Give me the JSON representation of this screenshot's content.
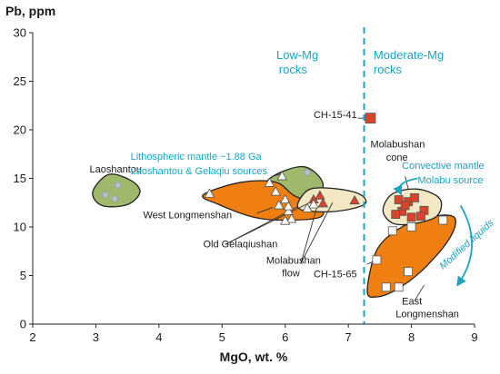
{
  "chart_data": {
    "type": "scatter",
    "xlabel": "MgO, wt. %",
    "ylabel": "Pb, ppm",
    "xlim": [
      2,
      9
    ],
    "ylim": [
      0,
      30
    ],
    "xticks": [
      "2",
      "3",
      "4",
      "5",
      "6",
      "7",
      "8",
      "9"
    ],
    "yticks": [
      "0",
      "5",
      "10",
      "15",
      "20",
      "25",
      "30"
    ],
    "grid": false,
    "divider": {
      "x": 7.25,
      "style": "dashed",
      "color": "#1ba3c6",
      "left_label": [
        "Low-Mg",
        "rocks"
      ],
      "right_label": [
        "Moderate-Mg",
        "rocks"
      ]
    },
    "fields": [
      {
        "label": "Laoshantou",
        "color": "#9fb86b",
        "polygon": [
          [
            2.95,
            13.6
          ],
          [
            3.2,
            15.4
          ],
          [
            3.55,
            14.8
          ],
          [
            3.7,
            13.6
          ],
          [
            3.5,
            12.3
          ],
          [
            3.1,
            12.2
          ]
        ]
      },
      {
        "label": "Lithospheric mantle ~1.88 Ga",
        "color": "#9fb86b",
        "polygon": [
          [
            5.65,
            13.6
          ],
          [
            5.8,
            15.2
          ],
          [
            6.3,
            16.2
          ],
          [
            6.6,
            14.4
          ],
          [
            6.4,
            12.2
          ],
          [
            5.95,
            12.3
          ]
        ]
      },
      {
        "label": "West Longmenshan",
        "color": "#f07f12",
        "polygon": [
          [
            4.7,
            13.3
          ],
          [
            5.3,
            14.6
          ],
          [
            5.85,
            14.6
          ],
          [
            6.15,
            13.2
          ],
          [
            6.55,
            12.2
          ],
          [
            6.55,
            11.0
          ],
          [
            6.0,
            10.7
          ],
          [
            5.5,
            11.0
          ],
          [
            4.95,
            12.3
          ]
        ]
      },
      {
        "label": "Old Gelaqiushan",
        "color": "#f2e8c3",
        "polygon": [
          [
            6.2,
            12.4
          ],
          [
            6.4,
            13.9
          ],
          [
            6.85,
            13.9
          ],
          [
            7.2,
            13.3
          ],
          [
            7.25,
            12.3
          ],
          [
            6.8,
            11.6
          ],
          [
            6.3,
            11.7
          ]
        ]
      },
      {
        "label": "East Longmenshan",
        "color": "#f07f12",
        "polygon": [
          [
            7.3,
            3.4
          ],
          [
            7.45,
            7.6
          ],
          [
            7.8,
            9.8
          ],
          [
            8.2,
            10.9
          ],
          [
            8.6,
            11.2
          ],
          [
            8.7,
            10.4
          ],
          [
            8.55,
            8.3
          ],
          [
            8.15,
            5.4
          ],
          [
            7.75,
            3.5
          ],
          [
            7.45,
            2.8
          ]
        ]
      },
      {
        "label": "Molabushan cone",
        "color": "#f2e8c3",
        "polygon": [
          [
            7.55,
            11.7
          ],
          [
            7.7,
            13.4
          ],
          [
            8.1,
            13.9
          ],
          [
            8.45,
            12.9
          ],
          [
            8.4,
            11.1
          ],
          [
            8.0,
            10.3
          ],
          [
            7.7,
            10.4
          ]
        ]
      }
    ],
    "series": [
      {
        "name": "West Longmenshan",
        "marker": "triangle",
        "color": "#ffffff",
        "x": [
          4.8,
          5.75,
          5.85,
          5.95,
          6.0,
          6.05,
          6.1,
          6.0,
          5.9,
          6.05
        ],
        "y": [
          13.4,
          14.5,
          13.6,
          15.2,
          12.8,
          11.6,
          10.8,
          10.6,
          12.2,
          12.1
        ]
      },
      {
        "name": "Old Gelaqiushan",
        "marker": "triangle",
        "color": "#d9442b",
        "x": [
          6.45,
          6.55,
          6.6,
          7.1
        ],
        "y": [
          12.8,
          13.2,
          12.4,
          12.7
        ]
      },
      {
        "name": "Molabushan flow",
        "marker": "triangle",
        "color": "#ffffff",
        "x": [
          6.35,
          6.45
        ],
        "y": [
          11.9,
          12.3
        ]
      },
      {
        "name": "Laoshantou",
        "marker": "diamond",
        "color": "#b7bed6",
        "x": [
          3.15,
          3.35,
          3.3
        ],
        "y": [
          13.3,
          14.3,
          12.9
        ]
      },
      {
        "name": "Lithospheric mantle ~1.88 Ga",
        "marker": "diamond",
        "color": "#b7bed6",
        "x": [
          6.35
        ],
        "y": [
          15.6
        ]
      },
      {
        "name": "CH-15-41",
        "marker": "square",
        "color": "#d9442b",
        "x": [
          7.35
        ],
        "y": [
          21.2
        ]
      },
      {
        "name": "Molabushan cone",
        "marker": "square",
        "color": "#d9442b",
        "x": [
          7.8,
          7.95,
          8.05,
          7.85,
          8.2,
          7.75,
          8.0,
          8.15,
          7.9
        ],
        "y": [
          12.8,
          12.6,
          13.0,
          11.6,
          11.7,
          11.3,
          11.0,
          11.1,
          12.2
        ]
      },
      {
        "name": "East Longmenshan",
        "marker": "square",
        "color": "#ffffff",
        "x": [
          7.45,
          7.6,
          7.8,
          7.95,
          8.0,
          8.5,
          7.7
        ],
        "y": [
          6.6,
          3.8,
          3.8,
          5.4,
          10.0,
          10.7,
          9.6
        ]
      }
    ],
    "annotations": [
      {
        "text": "Laoshantou",
        "color": "#1a1a1a",
        "x": 2.9,
        "y": 15.6
      },
      {
        "text": "Lithospheric mantle ~1.88 Ga",
        "color": "#1ba3c6",
        "x": 3.55,
        "y": 16.9
      },
      {
        "text": "Laoshantou & Gelaqiu sources",
        "color": "#1ba3c6",
        "x": 3.55,
        "y": 15.4
      },
      {
        "text": "West Longmenshan",
        "color": "#1a1a1a",
        "x": 3.75,
        "y": 10.9
      },
      {
        "text": "Old Gelaqiushan",
        "color": "#1a1a1a",
        "x": 4.7,
        "y": 7.9
      },
      {
        "text": "Molabushan",
        "color": "#1a1a1a",
        "x": 5.7,
        "y": 6.2
      },
      {
        "text": "flow",
        "color": "#1a1a1a",
        "x": 5.95,
        "y": 4.9
      },
      {
        "text": "CH-15-41",
        "color": "#1a1a1a",
        "x": 6.45,
        "y": 21.2
      },
      {
        "text": "Molabushan",
        "color": "#1a1a1a",
        "x": 7.35,
        "y": 18.2
      },
      {
        "text": "cone",
        "color": "#1a1a1a",
        "x": 7.6,
        "y": 16.8
      },
      {
        "text": "Convective mantle",
        "color": "#1ba3c6",
        "x": 7.85,
        "y": 16.0
      },
      {
        "text": "Molabu source",
        "color": "#1ba3c6",
        "x": 8.1,
        "y": 14.5
      },
      {
        "text": "CH-15-65",
        "color": "#1a1a1a",
        "x": 6.45,
        "y": 4.8
      },
      {
        "text": "East",
        "color": "#1a1a1a",
        "x": 7.85,
        "y": 2.0
      },
      {
        "text": "Longmenshan",
        "color": "#1a1a1a",
        "x": 7.75,
        "y": 0.7
      }
    ],
    "rotated_annotation": {
      "text": "Modified liquids",
      "color": "#1ba3c6",
      "x": 8.5,
      "y": 5.6,
      "angle": -42
    }
  }
}
